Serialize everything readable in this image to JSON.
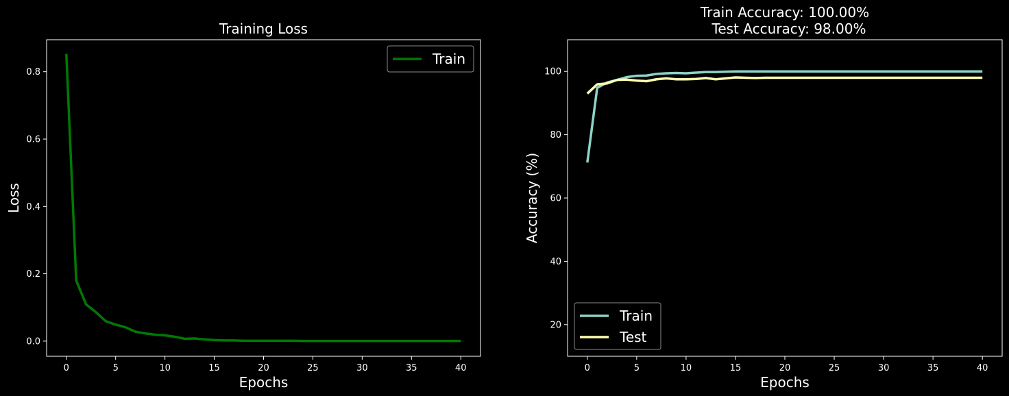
{
  "chart_data": [
    {
      "type": "line",
      "title": "Training Loss",
      "xlabel": "Epochs",
      "ylabel": "Loss",
      "xlim": [
        -2,
        42
      ],
      "ylim": [
        -0.045,
        0.895
      ],
      "xticks": [
        0,
        5,
        10,
        15,
        20,
        25,
        30,
        35,
        40
      ],
      "yticks": [
        0.0,
        0.2,
        0.4,
        0.6,
        0.8
      ],
      "ytick_labels": [
        "0.0",
        "0.2",
        "0.4",
        "0.6",
        "0.8"
      ],
      "grid": false,
      "legend": "upper right",
      "x": [
        0,
        1,
        2,
        3,
        4,
        5,
        6,
        7,
        8,
        9,
        10,
        11,
        12,
        13,
        14,
        15,
        16,
        17,
        18,
        19,
        20,
        21,
        22,
        23,
        24,
        25,
        26,
        27,
        28,
        29,
        30,
        31,
        32,
        33,
        34,
        35,
        36,
        37,
        38,
        39,
        40
      ],
      "series": [
        {
          "name": "Train",
          "color": "#007a00",
          "values": [
            0.853,
            0.18,
            0.109,
            0.086,
            0.059,
            0.049,
            0.041,
            0.028,
            0.023,
            0.019,
            0.017,
            0.013,
            0.007,
            0.008,
            0.005,
            0.003,
            0.002,
            0.002,
            0.001,
            0.001,
            0.001,
            0.001,
            0.001,
            0.001,
            0.0005,
            0.0005,
            0.0005,
            0.0005,
            0.0005,
            0.0005,
            0.0005,
            0.0005,
            0.0005,
            0.0005,
            0.0005,
            0.0005,
            0.0005,
            0.0005,
            0.0005,
            0.0005,
            0.0005
          ]
        }
      ]
    },
    {
      "type": "line",
      "title": "Train Accuracy: 100.00%\n Test Accuracy: 98.00%",
      "title_lines": [
        "Train Accuracy: 100.00%",
        "Test Accuracy: 98.00%"
      ],
      "xlabel": "Epochs",
      "ylabel": "Accuracy (%)",
      "xlim": [
        -2,
        42
      ],
      "ylim": [
        10,
        110
      ],
      "xticks": [
        0,
        5,
        10,
        15,
        20,
        25,
        30,
        35,
        40
      ],
      "yticks": [
        20,
        40,
        60,
        80,
        100
      ],
      "ytick_labels": [
        "20",
        "40",
        "60",
        "80",
        "100"
      ],
      "grid": false,
      "legend": "lower left",
      "x": [
        0,
        1,
        2,
        3,
        4,
        5,
        6,
        7,
        8,
        9,
        10,
        11,
        12,
        13,
        14,
        15,
        16,
        17,
        18,
        19,
        20,
        21,
        22,
        23,
        24,
        25,
        26,
        27,
        28,
        29,
        30,
        31,
        32,
        33,
        34,
        35,
        36,
        37,
        38,
        39,
        40
      ],
      "series": [
        {
          "name": "Train",
          "color": "#8dd3c7",
          "values": [
            71.2,
            94.8,
            96.5,
            97.3,
            98.2,
            98.6,
            98.7,
            99.2,
            99.4,
            99.5,
            99.4,
            99.6,
            99.8,
            99.8,
            99.9,
            100,
            100,
            100,
            100,
            100,
            100,
            100,
            100,
            100,
            100,
            100,
            100,
            100,
            100,
            100,
            100,
            100,
            100,
            100,
            100,
            100,
            100,
            100,
            100,
            100,
            100
          ]
        },
        {
          "name": "Test",
          "color": "#ffffb3",
          "values": [
            93.0,
            95.9,
            96.2,
            97.3,
            97.4,
            97.1,
            96.9,
            97.5,
            97.8,
            97.5,
            97.5,
            97.6,
            97.9,
            97.5,
            97.8,
            98.1,
            98.0,
            97.9,
            98.0,
            98.0,
            98.0,
            98.0,
            98.0,
            98.0,
            98.0,
            98.0,
            98.0,
            98.0,
            98.0,
            98.0,
            98.0,
            98.0,
            98.0,
            98.0,
            98.0,
            98.0,
            98.0,
            98.0,
            98.0,
            98.0,
            98.0
          ]
        }
      ]
    }
  ]
}
